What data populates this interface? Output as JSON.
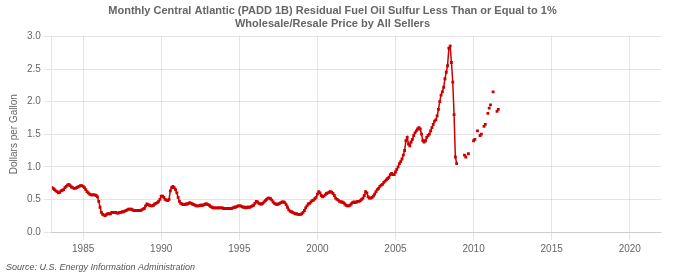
{
  "chart_data": {
    "type": "line",
    "title": "Monthly Central Atlantic (PADD 1B) Residual Fuel Oil Sulfur Less Than or Equal to 1%\nWholesale/Resale Price by All Sellers",
    "y_label": "Dollars per Gallon",
    "annotations": [
      "Source: U.S. Energy Information Administration"
    ],
    "xlim": [
      1983.0,
      2022.0
    ],
    "xticks": [
      1985,
      1990,
      1995,
      2000,
      2005,
      2010,
      2015,
      2020
    ],
    "ylim": [
      0.0,
      3.0
    ],
    "yticks": [
      {
        "value": 0.0,
        "label": "0.0"
      },
      0.5,
      {
        "value": 1.0,
        "label": "1.0"
      },
      1.5,
      {
        "value": 2.0,
        "label": "2.0"
      },
      2.5,
      {
        "value": 3.0,
        "label": "3.0"
      }
    ],
    "grid": true,
    "series": [
      {
        "color": "#cc0000",
        "marker": "square",
        "line_style": "solid",
        "x": [
          1983.0,
          1983.083333333333,
          1983.166666666667,
          1983.25,
          1983.333333333333,
          1983.416666666667,
          1983.5,
          1983.583333333333,
          1983.666666666667,
          1983.75,
          1983.833333333333,
          1983.916666666667,
          1984.0,
          1984.083333333333,
          1984.166666666667,
          1984.25,
          1984.333333333333,
          1984.416666666667,
          1984.5,
          1984.583333333333,
          1984.666666666667,
          1984.75,
          1984.833333333333,
          1984.916666666667,
          1985.0,
          1985.083333333333,
          1985.166666666667,
          1985.25,
          1985.333333333333,
          1985.416666666667,
          1985.5,
          1985.583333333333,
          1985.666666666667,
          1985.75,
          1985.833333333333,
          1985.916666666667,
          1986.0,
          1986.083333333333,
          1986.166666666667,
          1986.25,
          1986.333333333333,
          1986.416666666667,
          1986.5,
          1986.583333333333,
          1986.666666666667,
          1986.75,
          1986.833333333333,
          1986.916666666667,
          1987.0,
          1987.083333333333,
          1987.166666666667,
          1987.25,
          1987.333333333333,
          1987.416666666667,
          1987.5,
          1987.583333333333,
          1987.666666666667,
          1987.75,
          1987.833333333333,
          1987.916666666667,
          1988.0,
          1988.083333333333,
          1988.166666666667,
          1988.25,
          1988.333333333333,
          1988.416666666667,
          1988.5,
          1988.583333333333,
          1988.666666666667,
          1988.75,
          1988.833333333333,
          1988.916666666667,
          1989.0,
          1989.083333333333,
          1989.166666666667,
          1989.25,
          1989.333333333333,
          1989.416666666667,
          1989.5,
          1989.583333333333,
          1989.666666666667,
          1989.75,
          1989.833333333333,
          1989.916666666667,
          1990.0,
          1990.083333333333,
          1990.166666666667,
          1990.25,
          1990.333333333333,
          1990.416666666667,
          1990.5,
          1990.583333333333,
          1990.666666666667,
          1990.75,
          1990.833333333333,
          1990.916666666667,
          1991.0,
          1991.083333333333,
          1991.166666666667,
          1991.25,
          1991.333333333333,
          1991.416666666667,
          1991.5,
          1991.583333333333,
          1991.666666666667,
          1991.75,
          1991.833333333333,
          1991.916666666667,
          1992.0,
          1992.083333333333,
          1992.166666666667,
          1992.25,
          1992.333333333333,
          1992.416666666667,
          1992.5,
          1992.583333333333,
          1992.666666666667,
          1992.75,
          1992.833333333333,
          1992.916666666667,
          1993.0,
          1993.083333333333,
          1993.166666666667,
          1993.25,
          1993.333333333333,
          1993.416666666667,
          1993.5,
          1993.583333333333,
          1993.666666666667,
          1993.75,
          1993.833333333333,
          1993.916666666667,
          1994.0,
          1994.083333333333,
          1994.166666666667,
          1994.25,
          1994.333333333333,
          1994.416666666667,
          1994.5,
          1994.583333333333,
          1994.666666666667,
          1994.75,
          1994.833333333333,
          1994.916666666667,
          1995.0,
          1995.083333333333,
          1995.166666666667,
          1995.25,
          1995.333333333333,
          1995.416666666667,
          1995.5,
          1995.583333333333,
          1995.666666666667,
          1995.75,
          1995.833333333333,
          1995.916666666667,
          1996.0,
          1996.083333333333,
          1996.166666666667,
          1996.25,
          1996.333333333333,
          1996.416666666667,
          1996.5,
          1996.583333333333,
          1996.666666666667,
          1996.75,
          1996.833333333333,
          1996.916666666667,
          1997.0,
          1997.083333333333,
          1997.166666666667,
          1997.25,
          1997.333333333333,
          1997.416666666667,
          1997.5,
          1997.583333333333,
          1997.666666666667,
          1997.75,
          1997.833333333333,
          1997.916666666667,
          1998.0,
          1998.083333333333,
          1998.166666666667,
          1998.25,
          1998.333333333333,
          1998.416666666667,
          1998.5,
          1998.583333333333,
          1998.666666666667,
          1998.75,
          1998.833333333333,
          1998.916666666667,
          1999.0,
          1999.083333333333,
          1999.166666666667,
          1999.25,
          1999.333333333333,
          1999.416666666667,
          1999.5,
          1999.583333333333,
          1999.666666666667,
          1999.75,
          1999.833333333333,
          1999.916666666667,
          2000.0,
          2000.083333333333,
          2000.166666666667,
          2000.25,
          2000.333333333333,
          2000.416666666667,
          2000.5,
          2000.583333333333,
          2000.666666666667,
          2000.75,
          2000.833333333333,
          2000.916666666667,
          2001.0,
          2001.083333333333,
          2001.166666666667,
          2001.25,
          2001.333333333333,
          2001.416666666667,
          2001.5,
          2001.583333333333,
          2001.666666666667,
          2001.75,
          2001.833333333333,
          2001.916666666667,
          2002.0,
          2002.083333333333,
          2002.166666666667,
          2002.25,
          2002.333333333333,
          2002.416666666667,
          2002.5,
          2002.583333333333,
          2002.666666666667,
          2002.75,
          2002.833333333333,
          2002.916666666667,
          2003.0,
          2003.083333333333,
          2003.166666666667,
          2003.25,
          2003.333333333333,
          2003.416666666667,
          2003.5,
          2003.583333333333,
          2003.666666666667,
          2003.75,
          2003.833333333333,
          2003.916666666667,
          2004.0,
          2004.083333333333,
          2004.166666666667,
          2004.25,
          2004.333333333333,
          2004.416666666667,
          2004.5,
          2004.583333333333,
          2004.666666666667,
          2004.75,
          2004.833333333333,
          2004.916666666667,
          2005.0,
          2005.083333333333,
          2005.166666666667,
          2005.25,
          2005.333333333333,
          2005.416666666667,
          2005.5,
          2005.583333333333,
          2005.666666666667,
          2005.75,
          2005.833333333333,
          2005.916666666667,
          2006.0,
          2006.083333333333,
          2006.166666666667,
          2006.25,
          2006.333333333333,
          2006.416666666667,
          2006.5,
          2006.583333333333,
          2006.666666666667,
          2006.75,
          2006.833333333333,
          2006.916666666667,
          2007.0,
          2007.083333333333,
          2007.166666666667,
          2007.25,
          2007.333333333333,
          2007.416666666667,
          2007.5,
          2007.583333333333,
          2007.666666666667,
          2007.75,
          2007.833333333333,
          2007.916666666667,
          2008.0,
          2008.083333333333,
          2008.166666666667,
          2008.25,
          2008.333333333333,
          2008.416666666667,
          2008.5,
          2008.583333333333,
          2008.666666666667,
          2008.75,
          2008.833333333333,
          2008.916666666667
        ],
        "values": [
          0.68,
          0.67,
          0.65,
          0.63,
          0.62,
          0.6,
          0.61,
          0.63,
          0.64,
          0.65,
          0.68,
          0.7,
          0.72,
          0.73,
          0.71,
          0.69,
          0.68,
          0.67,
          0.67,
          0.68,
          0.69,
          0.7,
          0.71,
          0.71,
          0.7,
          0.68,
          0.65,
          0.62,
          0.6,
          0.58,
          0.57,
          0.57,
          0.57,
          0.57,
          0.56,
          0.54,
          0.47,
          0.38,
          0.3,
          0.27,
          0.26,
          0.25,
          0.27,
          0.28,
          0.28,
          0.28,
          0.3,
          0.3,
          0.3,
          0.3,
          0.29,
          0.29,
          0.3,
          0.3,
          0.31,
          0.31,
          0.32,
          0.33,
          0.34,
          0.35,
          0.35,
          0.35,
          0.34,
          0.33,
          0.33,
          0.33,
          0.33,
          0.33,
          0.33,
          0.34,
          0.35,
          0.36,
          0.4,
          0.43,
          0.42,
          0.41,
          0.4,
          0.4,
          0.41,
          0.43,
          0.44,
          0.45,
          0.47,
          0.5,
          0.55,
          0.55,
          0.53,
          0.5,
          0.49,
          0.48,
          0.5,
          0.63,
          0.68,
          0.7,
          0.68,
          0.65,
          0.6,
          0.53,
          0.47,
          0.44,
          0.43,
          0.42,
          0.42,
          0.43,
          0.43,
          0.44,
          0.45,
          0.44,
          0.43,
          0.42,
          0.41,
          0.4,
          0.4,
          0.4,
          0.41,
          0.41,
          0.41,
          0.42,
          0.43,
          0.43,
          0.42,
          0.41,
          0.39,
          0.38,
          0.37,
          0.37,
          0.37,
          0.37,
          0.37,
          0.37,
          0.37,
          0.37,
          0.36,
          0.36,
          0.36,
          0.36,
          0.36,
          0.36,
          0.36,
          0.37,
          0.38,
          0.38,
          0.39,
          0.4,
          0.4,
          0.4,
          0.39,
          0.38,
          0.38,
          0.37,
          0.38,
          0.38,
          0.38,
          0.39,
          0.4,
          0.41,
          0.44,
          0.47,
          0.46,
          0.44,
          0.43,
          0.43,
          0.44,
          0.46,
          0.48,
          0.5,
          0.52,
          0.52,
          0.51,
          0.49,
          0.46,
          0.44,
          0.43,
          0.42,
          0.43,
          0.44,
          0.45,
          0.46,
          0.46,
          0.45,
          0.42,
          0.38,
          0.34,
          0.32,
          0.31,
          0.3,
          0.29,
          0.28,
          0.28,
          0.27,
          0.27,
          0.27,
          0.28,
          0.3,
          0.33,
          0.37,
          0.4,
          0.43,
          0.44,
          0.46,
          0.48,
          0.49,
          0.51,
          0.53,
          0.58,
          0.62,
          0.6,
          0.56,
          0.54,
          0.55,
          0.57,
          0.59,
          0.6,
          0.61,
          0.62,
          0.61,
          0.59,
          0.56,
          0.52,
          0.5,
          0.49,
          0.47,
          0.46,
          0.46,
          0.45,
          0.43,
          0.41,
          0.4,
          0.4,
          0.41,
          0.43,
          0.45,
          0.46,
          0.45,
          0.46,
          0.47,
          0.47,
          0.48,
          0.5,
          0.52,
          0.56,
          0.62,
          0.6,
          0.54,
          0.52,
          0.52,
          0.53,
          0.55,
          0.58,
          0.62,
          0.65,
          0.67,
          0.7,
          0.72,
          0.73,
          0.76,
          0.78,
          0.8,
          0.82,
          0.84,
          0.88,
          0.9,
          0.88,
          0.88,
          0.92,
          0.96,
          1.0,
          1.05,
          1.08,
          1.12,
          1.18,
          1.25,
          1.4,
          1.45,
          1.35,
          1.32,
          1.38,
          1.42,
          1.48,
          1.52,
          1.55,
          1.58,
          1.6,
          1.58,
          1.5,
          1.4,
          1.38,
          1.4,
          1.45,
          1.48,
          1.5,
          1.55,
          1.6,
          1.65,
          1.7,
          1.72,
          1.78,
          1.88,
          2.0,
          2.1,
          2.15,
          2.22,
          2.35,
          2.45,
          2.55,
          2.82,
          2.85,
          2.6,
          2.3,
          1.8,
          1.15,
          1.05
        ]
      },
      {
        "color": "#cc0000",
        "marker": "square",
        "line_style": "none",
        "x": [
          2009.416666666667,
          2009.5,
          2009.666666666667,
          2010.0,
          2010.083333333333,
          2010.25,
          2010.416666666667,
          2010.5,
          2010.666666666667,
          2010.75,
          2010.916666666667,
          2011.0,
          2011.083333333333,
          2011.25,
          2011.5,
          2011.583333333333
        ],
        "values": [
          1.18,
          1.15,
          1.2,
          1.4,
          1.42,
          1.55,
          1.48,
          1.5,
          1.62,
          1.65,
          1.82,
          1.9,
          1.95,
          2.15,
          1.85,
          1.88
        ]
      }
    ]
  }
}
